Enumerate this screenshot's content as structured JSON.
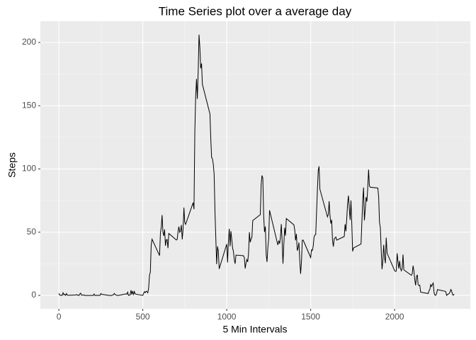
{
  "chart_data": {
    "type": "line",
    "title": "Time Series plot over a average day",
    "x_label": "5 Min Intervals",
    "y_label": "Steps",
    "color": "#000000",
    "grid": true,
    "xlim": [
      -110,
      2451
    ],
    "ylim": [
      -10.6,
      216.8
    ],
    "xticks": [
      0,
      500,
      1000,
      1500,
      2000
    ],
    "yticks": [
      0,
      50,
      100,
      150,
      200
    ],
    "x_minor_ticks": [
      250,
      750,
      1250,
      1750,
      2250
    ],
    "y_minor_ticks": [
      25,
      75,
      125,
      175
    ],
    "x": [
      0,
      5,
      10,
      15,
      20,
      25,
      30,
      35,
      40,
      45,
      50,
      55,
      100,
      105,
      110,
      115,
      120,
      125,
      130,
      135,
      140,
      145,
      150,
      155,
      200,
      205,
      210,
      215,
      220,
      225,
      230,
      235,
      240,
      245,
      250,
      255,
      300,
      305,
      310,
      315,
      320,
      325,
      330,
      335,
      340,
      345,
      350,
      355,
      400,
      405,
      410,
      415,
      420,
      425,
      430,
      435,
      440,
      445,
      450,
      455,
      500,
      505,
      510,
      515,
      520,
      525,
      530,
      535,
      540,
      545,
      550,
      555,
      600,
      605,
      610,
      615,
      620,
      625,
      630,
      635,
      640,
      645,
      650,
      655,
      700,
      705,
      710,
      715,
      720,
      725,
      730,
      735,
      740,
      745,
      750,
      755,
      800,
      805,
      810,
      815,
      820,
      825,
      830,
      835,
      840,
      845,
      850,
      855,
      900,
      905,
      910,
      915,
      920,
      925,
      930,
      935,
      940,
      945,
      950,
      955,
      1000,
      1005,
      1010,
      1015,
      1020,
      1025,
      1030,
      1035,
      1040,
      1045,
      1050,
      1055,
      1100,
      1105,
      1110,
      1115,
      1120,
      1125,
      1130,
      1135,
      1140,
      1145,
      1150,
      1155,
      1200,
      1205,
      1210,
      1215,
      1220,
      1225,
      1230,
      1235,
      1240,
      1245,
      1250,
      1255,
      1300,
      1305,
      1310,
      1315,
      1320,
      1325,
      1330,
      1335,
      1340,
      1345,
      1350,
      1355,
      1400,
      1405,
      1410,
      1415,
      1420,
      1425,
      1430,
      1435,
      1440,
      1445,
      1450,
      1455,
      1500,
      1505,
      1510,
      1515,
      1520,
      1525,
      1530,
      1535,
      1540,
      1545,
      1550,
      1555,
      1600,
      1605,
      1610,
      1615,
      1620,
      1625,
      1630,
      1635,
      1640,
      1645,
      1650,
      1655,
      1700,
      1705,
      1710,
      1715,
      1720,
      1725,
      1730,
      1735,
      1740,
      1745,
      1750,
      1755,
      1800,
      1805,
      1810,
      1815,
      1820,
      1825,
      1830,
      1835,
      1840,
      1845,
      1850,
      1855,
      1900,
      1905,
      1910,
      1915,
      1920,
      1925,
      1930,
      1935,
      1940,
      1945,
      1950,
      1955,
      2000,
      2005,
      2010,
      2015,
      2020,
      2025,
      2030,
      2035,
      2040,
      2045,
      2050,
      2055,
      2100,
      2105,
      2110,
      2115,
      2120,
      2125,
      2130,
      2135,
      2140,
      2145,
      2150,
      2155,
      2200,
      2205,
      2210,
      2215,
      2220,
      2225,
      2230,
      2235,
      2240,
      2245,
      2250,
      2255,
      2300,
      2305,
      2310,
      2315,
      2320,
      2325,
      2330,
      2335,
      2340,
      2345,
      2350,
      2355
    ],
    "values": [
      1.7,
      0.3,
      0.1,
      0.2,
      0.1,
      2.1,
      0.5,
      0.9,
      0,
      1.5,
      0.3,
      0.1,
      0.3,
      0.7,
      0.2,
      0.3,
      0,
      1.1,
      1.8,
      0.2,
      0.2,
      0.4,
      0.3,
      0,
      0,
      0,
      1.1,
      0,
      0,
      0.1,
      0,
      0.2,
      0,
      0,
      1.5,
      0.9,
      0,
      0,
      0,
      0,
      0.2,
      0.6,
      1.6,
      0.6,
      0.5,
      0.1,
      0,
      0,
      1.2,
      0.9,
      2.6,
      0,
      0.3,
      0.4,
      4.1,
      0.7,
      3.5,
      0.8,
      3.1,
      1.1,
      0,
      1.6,
      3,
      2.2,
      3.3,
      3,
      2.1,
      6.1,
      16,
      18.3,
      39.5,
      44.5,
      31.5,
      49.3,
      53.8,
      63.5,
      50,
      47.1,
      52.2,
      39.3,
      44,
      44.2,
      37.4,
      49,
      43.8,
      44.4,
      50.5,
      54.5,
      49.9,
      51,
      55.7,
      44.3,
      52.3,
      69.5,
      57.8,
      56.2,
      73.4,
      68.2,
      129.4,
      157.5,
      171.2,
      155.4,
      177.3,
      206.2,
      195.9,
      179.6,
      183.4,
      167,
      143.5,
      124,
      109.1,
      108.1,
      103.7,
      95.9,
      66.2,
      45.2,
      24.8,
      38.8,
      35,
      21,
      40.6,
      26.1,
      42.4,
      52.7,
      38.9,
      50.8,
      44.3,
      37.4,
      34.7,
      28.3,
      25.1,
      31.9,
      31.4,
      29.7,
      21.3,
      25.5,
      28.4,
      26.5,
      33.4,
      50,
      42,
      44.6,
      46,
      59.2,
      63.9,
      87.7,
      94.8,
      92.8,
      63.4,
      50.2,
      54.5,
      32.4,
      26.5,
      37.7,
      45.1,
      67.3,
      42.3,
      39.9,
      43.3,
      41,
      46.2,
      56.4,
      42.8,
      25.1,
      40,
      53.5,
      47.3,
      60.8,
      55.8,
      52,
      43.6,
      48.7,
      35.5,
      37.5,
      41.8,
      27.5,
      17.1,
      26.1,
      43.6,
      43.8,
      30,
      36.1,
      35.5,
      38.8,
      46,
      47.8,
      48.1,
      65.3,
      82.9,
      98.7,
      102.1,
      84,
      62.1,
      64.1,
      74.5,
      63.2,
      56.9,
      59.8,
      43.9,
      38.6,
      44.7,
      45.5,
      46.2,
      43.7,
      46.6,
      56.3,
      50.7,
      61.2,
      72.7,
      78.9,
      68.9,
      59.7,
      75.1,
      56.5,
      34.8,
      37.5,
      40.7,
      58,
      74.7,
      85.3,
      59.3,
      67.8,
      77.7,
      74.2,
      85.3,
      99.5,
      86.6,
      85.6,
      84.9,
      77.8,
      58,
      53.4,
      36.3,
      20.7,
      27.4,
      40,
      30.2,
      25.5,
      45.7,
      33.5,
      19.6,
      19,
      19.3,
      33.3,
      26.8,
      21.2,
      27.3,
      21.3,
      19.5,
      21.3,
      32.3,
      20.2,
      15.9,
      17.2,
      23.5,
      19.2,
      12.5,
      8,
      14.7,
      16.3,
      8.7,
      7.8,
      8.1,
      2.6,
      1.5,
      3.7,
      4.8,
      8.5,
      7.1,
      8.7,
      9.8,
      2.2,
      0.3,
      0.1,
      1.6,
      4.6,
      3.3,
      2.8,
      0,
      0.8,
      1,
      1.6,
      2.6,
      4.7,
      3.3,
      0.6,
      0.2,
      1.1
    ]
  }
}
